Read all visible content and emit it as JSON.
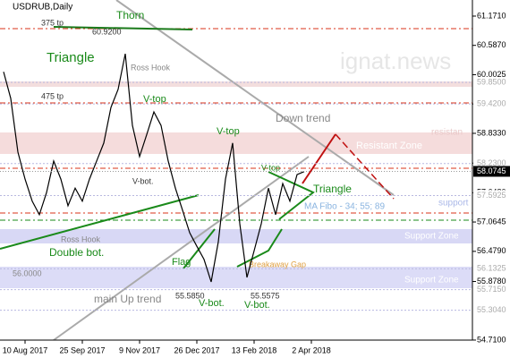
{
  "chart_data": {
    "type": "line",
    "title": "USDRUB,Daily",
    "watermark": "ignat.news",
    "color": "#000000",
    "categories": [
      null,
      null,
      null,
      "10 Aug 2017",
      null,
      null,
      null,
      null,
      null,
      null,
      null,
      "25 Sep 2017",
      null,
      null,
      null,
      null,
      null,
      null,
      null,
      "9 Nov 2017",
      null,
      null,
      null,
      null,
      null,
      null,
      null,
      "26 Dec 2017",
      null,
      null,
      null,
      null,
      null,
      null,
      null,
      "13 Feb 2018",
      null,
      null,
      null,
      null,
      null,
      null,
      null,
      "2 Apr 2018"
    ],
    "values": [
      60.06,
      59.53,
      58.46,
      57.92,
      57.48,
      57.21,
      57.65,
      58.28,
      57.92,
      57.39,
      57.74,
      57.48,
      57.92,
      58.28,
      58.64,
      59.35,
      59.71,
      60.42,
      58.99,
      58.37,
      58.81,
      59.26,
      58.99,
      58.28,
      57.74,
      57.3,
      56.85,
      56.58,
      56.32,
      55.87,
      56.67,
      57.92,
      58.64,
      57.03,
      55.96,
      56.49,
      57.03,
      57.74,
      57.21,
      57.83,
      57.48,
      58.01,
      58.07,
      null
    ],
    "ylim": [
      54.745,
      61.492
    ],
    "yticks": [
      {
        "value": 61.171,
        "label": "61.1710"
      },
      {
        "value": 60.587,
        "label": "60.5870"
      },
      {
        "value": 60.0025,
        "label": "60.0025"
      },
      {
        "value": 59.418,
        "label": "59.4180"
      },
      {
        "value": 58.833,
        "label": "58.8330"
      },
      {
        "value": 58.239,
        "label": "58.2390"
      },
      {
        "value": 57.648,
        "label": "57.6480"
      },
      {
        "value": 57.0645,
        "label": "57.0645"
      },
      {
        "value": 56.479,
        "label": "56.4790"
      },
      {
        "value": 55.878,
        "label": "55.8780"
      },
      {
        "value": 54.71,
        "label": "54.7100"
      }
    ],
    "levels": [
      {
        "value": 59.85,
        "label": "59.8500"
      },
      {
        "value": 59.42,
        "label": "59.4200"
      },
      {
        "value": 58.23,
        "label": "58.2300"
      },
      {
        "value": 57.5925,
        "label": "57.5925"
      },
      {
        "value": 56.1325,
        "label": "56.1325"
      },
      {
        "value": 55.715,
        "label": "55.7150"
      },
      {
        "value": 55.304,
        "label": "55.3040"
      }
    ],
    "current_price": {
      "value": 58.0745,
      "label": "58.0745"
    },
    "annotations": [
      "Thorn",
      "Triangle",
      "Ross Hook",
      "V-top",
      "V-bot.",
      "V-top",
      "V-top",
      "Triangle",
      "Down trend",
      "Resistant Zone",
      "resistan",
      "MA Fibo - 34; 55; 89",
      "support",
      "Support Zone",
      "Support Zone",
      "Double bot.",
      "Ross Hook",
      "Flag",
      "Breakaway Gap",
      "main Up trend",
      "V-bot.",
      "V-bot.",
      "55.5850",
      "55.5575",
      "60.9200",
      "56.0000",
      "375 tp",
      "475 tp"
    ]
  }
}
